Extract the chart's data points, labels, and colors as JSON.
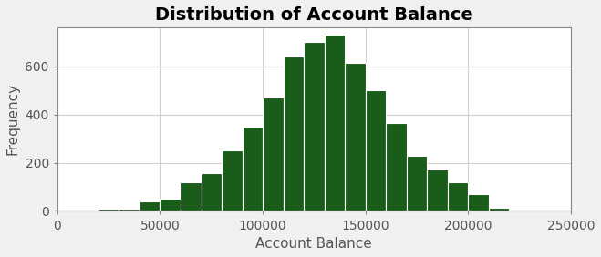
{
  "title": "Distribution of Account Balance",
  "xlabel": "Account Balance",
  "ylabel": "Frequency",
  "bar_color": "#1a5c1a",
  "bar_edge_color": "#ffffff",
  "background_color": "#f0f0f0",
  "plot_background_color": "#ffffff",
  "xlim": [
    0,
    250000
  ],
  "ylim": [
    0,
    760
  ],
  "xticks": [
    0,
    50000,
    100000,
    150000,
    200000,
    250000
  ],
  "yticks": [
    0,
    200,
    400,
    600
  ],
  "bin_left_edges": [
    20000,
    30000,
    40000,
    50000,
    60000,
    70000,
    80000,
    90000,
    100000,
    110000,
    120000,
    130000,
    140000,
    150000,
    160000,
    170000,
    180000,
    190000,
    200000,
    210000
  ],
  "frequencies": [
    10,
    8,
    40,
    50,
    120,
    155,
    250,
    350,
    470,
    640,
    700,
    730,
    615,
    500,
    365,
    230,
    170,
    120,
    70,
    15
  ],
  "bin_width": 10000,
  "title_fontsize": 14,
  "axis_label_fontsize": 11,
  "tick_fontsize": 10,
  "grid_color": "#d0d0d0",
  "title_color": "#000000",
  "label_color": "#555555"
}
